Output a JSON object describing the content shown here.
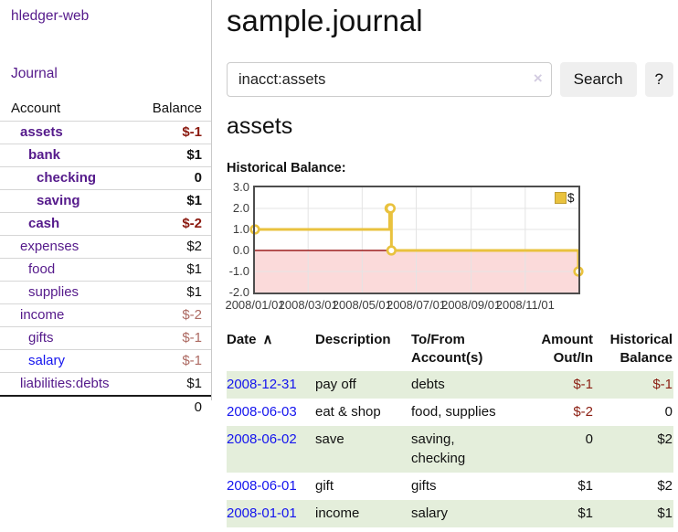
{
  "sidebar": {
    "brand": "hledger-web",
    "nav": {
      "journal": "Journal"
    },
    "accounts": {
      "col_account": "Account",
      "col_balance": "Balance",
      "rows": [
        {
          "name": "assets",
          "balance": "$-1"
        },
        {
          "name": "bank",
          "balance": "$1"
        },
        {
          "name": "checking",
          "balance": "0"
        },
        {
          "name": "saving",
          "balance": "$1"
        },
        {
          "name": "cash",
          "balance": "$-2"
        },
        {
          "name": "expenses",
          "balance": "$2"
        },
        {
          "name": "food",
          "balance": "$1"
        },
        {
          "name": "supplies",
          "balance": "$1"
        },
        {
          "name": "income",
          "balance": "$-2"
        },
        {
          "name": "gifts",
          "balance": "$-1"
        },
        {
          "name": "salary",
          "balance": "$-1"
        },
        {
          "name": "liabilities:debts",
          "balance": "$1"
        }
      ],
      "total": "0"
    }
  },
  "header": {
    "title": "sample.journal"
  },
  "search": {
    "query": "inacct:assets",
    "clear_icon": "×",
    "button": "Search",
    "help_button": "?"
  },
  "account_page": {
    "heading": "assets",
    "chart_label": "Historical Balance:"
  },
  "chart_data": {
    "type": "line",
    "step": true,
    "title": "Historical Balance:",
    "series": [
      {
        "name": "$",
        "color": "#E9C23E",
        "points": [
          [
            "2008-01-01",
            1
          ],
          [
            "2008-06-01",
            2
          ],
          [
            "2008-06-02",
            2
          ],
          [
            "2008-06-03",
            0
          ],
          [
            "2008-12-31",
            -1
          ]
        ]
      }
    ],
    "x_range": [
      "2008-01-01",
      "2008-12-31"
    ],
    "ylim": [
      -2,
      3
    ],
    "yticks": [
      {
        "v": 3,
        "label": "3.0"
      },
      {
        "v": 2,
        "label": "2.0"
      },
      {
        "v": 1,
        "label": "1.0"
      },
      {
        "v": 0,
        "label": "0.0"
      },
      {
        "v": -1,
        "label": "-1.0"
      },
      {
        "v": -2,
        "label": "-2.0"
      }
    ],
    "xticks": [
      {
        "date": "2008-01-01",
        "label": "2008/01/01"
      },
      {
        "date": "2008-03-01",
        "label": "2008/03/01"
      },
      {
        "date": "2008-05-01",
        "label": "2008/05/01"
      },
      {
        "date": "2008-07-01",
        "label": "2008/07/01"
      },
      {
        "date": "2008-09-01",
        "label": "2008/09/01"
      },
      {
        "date": "2008-11-01",
        "label": "2008/11/01"
      }
    ],
    "legend": {
      "label": "$",
      "position": "top-right"
    },
    "grid": true,
    "zero_line_color": "#9C1C1C",
    "negative_fill": "#FBDADA"
  },
  "register": {
    "headers": {
      "date": "Date",
      "sort_indicator": "∧",
      "description": "Description",
      "tofrom": "To/From Account(s)",
      "amount": "Amount Out/In",
      "balance": "Historical Balance"
    },
    "rows": [
      {
        "date": "2008-12-31",
        "description": "pay off",
        "tofrom": "debts",
        "amount": "$-1",
        "balance": "$-1"
      },
      {
        "date": "2008-06-03",
        "description": "eat & shop",
        "tofrom": "food, supplies",
        "amount": "$-2",
        "balance": "0"
      },
      {
        "date": "2008-06-02",
        "description": "save",
        "tofrom": "saving,\nchecking",
        "amount": "0",
        "balance": "$2"
      },
      {
        "date": "2008-06-01",
        "description": "gift",
        "tofrom": "gifts",
        "amount": "$1",
        "balance": "$2"
      },
      {
        "date": "2008-01-01",
        "description": "income",
        "tofrom": "salary",
        "amount": "$1",
        "balance": "$1"
      }
    ]
  }
}
